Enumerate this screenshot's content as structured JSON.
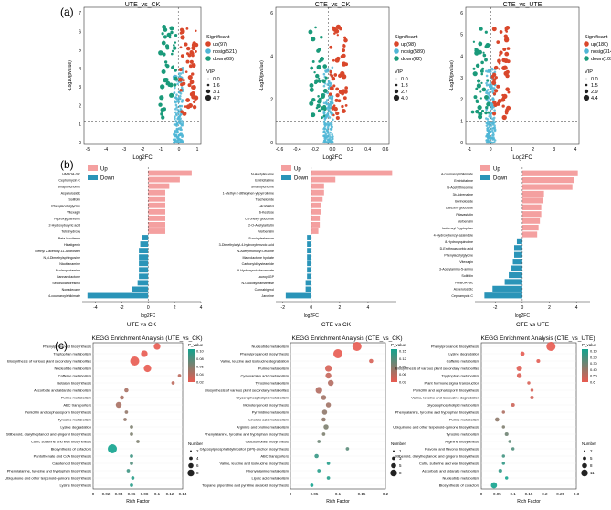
{
  "colors": {
    "up": "#d9472b",
    "nosig": "#4fb6d6",
    "down": "#1a9a7a",
    "bar_up": "#f4a0a0",
    "bar_down": "#2a94b8",
    "kegg_lo": "#e85a50",
    "kegg_hi": "#12a38e"
  },
  "panel_labels": {
    "a": "(a)",
    "b": "(b)",
    "c": "(c)"
  },
  "volcano": [
    {
      "title": "UTE_vs_CK",
      "xlabel": "Log2FC",
      "ylabel": "-Log10(pvalue)",
      "xticks": [
        "-5",
        "-4",
        "-3",
        "-2",
        "-1",
        "0",
        "1"
      ],
      "yticks": [
        "0",
        "1",
        "2",
        "3",
        "4",
        "5",
        "6",
        "7"
      ],
      "legend_title": "Significant",
      "legend_items": [
        "up(97)",
        "nosig(521)",
        "down(69)"
      ],
      "vip_title": "VIP",
      "vip_items": [
        "0.0",
        "1.6",
        "3.1",
        "4.7"
      ]
    },
    {
      "title": "CTE_vs_CK",
      "xlabel": "Log2FC",
      "ylabel": "-Log10(pvalue)",
      "xticks": [
        "-0.6",
        "-0.4",
        "-0.2",
        "0.0",
        "0.2",
        "0.4",
        "0.6"
      ],
      "yticks": [
        "0",
        "2",
        "4",
        "6"
      ],
      "legend_title": "Significant",
      "legend_items": [
        "up(98)",
        "nosig(589)",
        "down(82)"
      ],
      "vip_title": "VIP",
      "vip_items": [
        "0.0",
        "1.3",
        "2.7",
        "4.0"
      ]
    },
    {
      "title": "CTE_vs_UTE",
      "xlabel": "Log2FC",
      "ylabel": "-Log10(pvalue)",
      "xticks": [
        "-1",
        "0",
        "1",
        "2",
        "3",
        "4"
      ],
      "yticks": [
        "0",
        "1",
        "2",
        "3",
        "4",
        "5",
        "6"
      ],
      "legend_title": "Significant",
      "legend_items": [
        "up(180)",
        "nosig(314)",
        "down(103)"
      ],
      "vip_title": "VIP",
      "vip_items": [
        "0.0",
        "1.5",
        "2.9",
        "4.4"
      ]
    }
  ],
  "bars": [
    {
      "xlabel": "log2FC",
      "footer": "UTE vs CK",
      "legend_up": "Up",
      "legend_down": "Down",
      "xticks": [
        "-4",
        "-2",
        "0",
        "2",
        "4"
      ],
      "labels": [
        "HMBOA-Glc",
        "Cephamycin C",
        "Sinapoylcholine",
        "Asperulosidic",
        "Solifolin",
        "Phenylacetylglycine",
        "Vitexagin",
        "Hydroxyguanidine",
        "2-Hydroxybutyric acid",
        "Tetrahydroxy",
        "Beta-Isocitrene",
        "Hiuatigenin",
        "Methyl 2-acetoxy-11-Androsten",
        "N,N-Dimethylsphingosine",
        "Nicotianamine",
        "Nucleoprotamine",
        "Cannanolactone",
        "Secoisolariciresinol",
        "Nonadecane",
        "4-coumaroylshikimate"
      ],
      "values": [
        3.3,
        2.4,
        1.6,
        1.3,
        1.3,
        1.3,
        1.3,
        1.3,
        1.3,
        1.3,
        -0.5,
        -0.6,
        -0.7,
        -0.7,
        -0.7,
        -0.7,
        -0.7,
        -0.8,
        -1.2,
        -4.6
      ]
    },
    {
      "xlabel": "log2FC",
      "footer": "CTE vs CK",
      "legend_up": "Up",
      "legend_down": "Down",
      "xticks": [
        "-2",
        "0",
        "2",
        "4"
      ],
      "labels": [
        "N-Acetylleucine",
        "Emtricitabine",
        "Sinapoylcholine",
        "1-Methyl-2-dithiophen-yl-pyrrolidine",
        "Tracheloside",
        "L-Arabinitol",
        "6-Kestose",
        "Citronellyl glucoside",
        "2-O-Acetylarbutin",
        "Verbenalin",
        "Succinylselenium",
        "3-Dimethylallyl-4-hydroxybenzoic acid",
        "N-Acetylmonoxyl Leucine",
        "Macrolactone hydrate",
        "Carbonyldicysteamide",
        "9-Hydroxyoctadecanoate",
        "Lauroyl-GP",
        "N-Glucosyltransferase",
        "Cannabigerol",
        "Jarosine"
      ],
      "values": [
        5.7,
        1.7,
        0.9,
        0.9,
        0.8,
        0.7,
        0.7,
        0.6,
        0.6,
        0.5,
        -0.3,
        -0.3,
        -0.3,
        -0.3,
        -0.3,
        -0.3,
        -0.3,
        -0.4,
        -0.4,
        -1.8
      ]
    },
    {
      "xlabel": "log2FC",
      "footer": "CTE vs UTE",
      "legend_up": "Up",
      "legend_down": "Down",
      "xticks": [
        "-2",
        "0",
        "2",
        "4"
      ],
      "labels": [
        "4-coumaroylshikimate",
        "Emtricitabine",
        "N-Acetylthreonine",
        "3b-Adrenaline",
        "Borinoloside",
        "Daidzein glucoside",
        "Pitavastatin",
        "Verbenalin",
        "Isobenzyl Tryptophan",
        "4-Hydroxybenzyl-azaindole",
        "8-Hydroxyquinoline",
        "D-Erythroascorbic acid",
        "Phenylacetylglycine",
        "Vitexagin",
        "3-Acetylamino-5-amino",
        "Solifolin",
        "HMBOA-Glc",
        "Asperulosidic",
        "Cephamycin C"
      ],
      "values": [
        4.1,
        3.8,
        3.7,
        1.6,
        1.5,
        1.4,
        1.4,
        1.3,
        1.2,
        1.1,
        -0.4,
        -0.6,
        -0.6,
        -0.7,
        -0.8,
        -1.0,
        -1.3,
        -2.2,
        -2.8
      ]
    }
  ],
  "kegg": [
    {
      "title": "KEGG Enrichment Analysis (UTE_vs_CK)",
      "xlabel": "Rich Factor",
      "xticks": [
        "0",
        "0.02",
        "0.04",
        "0.06",
        "0.08",
        "0.1",
        "0.12",
        "0.14"
      ],
      "xmax": 0.14,
      "pathways": [
        "Phenylpropanoid biosynthesis",
        "Tryptophan metabolism",
        "Biosynthesis of various plant secondary metabolites",
        "Nucleotide metabolism",
        "Caffeine metabolism",
        "Betalain biosynthesis",
        "Ascorbate and aldarate metabolism",
        "Purine metabolism",
        "ABC transporters",
        "Penicillin and cephalosporin biosynthesis",
        "Tyrosine metabolism",
        "Lysine degradation",
        "Stilbenoid, diarylheptanoid and gingerol biosynthesis",
        "Cutin, suberine and wax biosynthesis",
        "Biosynthesis of cofactors",
        "Pantothenate and CoA biosynthesis",
        "Carotenoid biosynthesis",
        "Phenylalanine, tyrosine and tryptophan biosynthesis",
        "Ubiquinone and other terpenoid-quinone biosynthesis",
        "Lysine biosynthesis"
      ],
      "rich": [
        0.1,
        0.08,
        0.065,
        0.085,
        0.135,
        0.125,
        0.052,
        0.045,
        0.04,
        0.052,
        0.05,
        0.06,
        0.06,
        0.07,
        0.03,
        0.06,
        0.06,
        0.055,
        0.062,
        0.06
      ],
      "pval": [
        0.01,
        0.01,
        0.01,
        0.01,
        0.03,
        0.03,
        0.04,
        0.04,
        0.04,
        0.05,
        0.05,
        0.06,
        0.06,
        0.06,
        0.11,
        0.09,
        0.08,
        0.09,
        0.1,
        0.1
      ],
      "count": [
        5,
        5,
        8,
        6,
        1,
        1,
        2,
        2,
        4,
        1,
        1,
        1,
        1,
        1,
        8,
        1,
        1,
        1,
        1,
        1
      ],
      "pvalue_title": "P_value",
      "pvalue_ticks": [
        "0.10",
        "0.08",
        "0.06",
        "0.04",
        "0.02"
      ],
      "number_title": "Number",
      "number_items": [
        "2",
        "4",
        "6",
        "8"
      ]
    },
    {
      "title": "KEGG Enrichment Analysis (CTE_vs_CK)",
      "xlabel": "Rich Factor",
      "xticks": [
        "0",
        "0.05",
        "0.1",
        "0.15",
        "0.2"
      ],
      "xmax": 0.2,
      "pathways": [
        "Nucleotide metabolism",
        "Phenylpropanoid biosynthesis",
        "Valine, leucine and isoleucine degradation",
        "Purine metabolism",
        "Cyanoamino acid metabolism",
        "Tyrosine metabolism",
        "Biosynthesis of various plant secondary metabolites",
        "Glycerophospholipid metabolism",
        "Monoterpenoid biosynthesis",
        "Pyrimidine metabolism",
        "Linoleic acid metabolism",
        "Arginine and proline metabolism",
        "Phenylalanine, tyrosine and tryptophan biosynthesis",
        "Glucosinolate biosynthesis",
        "Glycosylphosphatidylinositol (GPI)-anchor biosynthesis",
        "ABC transporters",
        "Valine, leucine and isoleucine biosynthesis",
        "Phenylalanine metabolism",
        "Lipoic acid metabolism",
        "Tropane, piperidine and pyridine alkaloid biosynthesis"
      ],
      "rich": [
        0.14,
        0.1,
        0.17,
        0.08,
        0.08,
        0.085,
        0.06,
        0.07,
        0.08,
        0.072,
        0.07,
        0.075,
        0.07,
        0.06,
        0.12,
        0.055,
        0.08,
        0.06,
        0.08,
        0.045
      ],
      "pval": [
        0.02,
        0.02,
        0.03,
        0.03,
        0.04,
        0.05,
        0.05,
        0.06,
        0.06,
        0.07,
        0.07,
        0.08,
        0.08,
        0.09,
        0.1,
        0.12,
        0.13,
        0.13,
        0.13,
        0.14
      ],
      "count": [
        8,
        8,
        2,
        5,
        4,
        4,
        5,
        3,
        3,
        3,
        2,
        3,
        1,
        1,
        1,
        2,
        1,
        1,
        1,
        1
      ],
      "pvalue_title": "P_value",
      "pvalue_ticks": [
        "0.15",
        "0.12",
        "0.09",
        "0.06",
        "0.03"
      ],
      "number_title": "Number",
      "number_items": [
        "1",
        "3",
        "5",
        "8"
      ]
    },
    {
      "title": "KEGG Enrichment Analysis (CTE_vs_UTE)",
      "xlabel": "Rich Factor",
      "xticks": [
        "0",
        "0.05",
        "0.1",
        "0.15",
        "0.2",
        "0.25",
        "0.3"
      ],
      "xmax": 0.3,
      "pathways": [
        "Phenylpropanoid biosynthesis",
        "Lysine degradation",
        "Caffeine metabolism",
        "Biosynthesis of various plant secondary metabolites",
        "Tryptophan metabolism",
        "Plant hormone signal transduction",
        "Penicillin and cephalosporin biosynthesis",
        "Valine, leucine and isoleucine degradation",
        "Glycerophospholipid metabolism",
        "Phenylalanine, tyrosine and tryptophan biosynthesis",
        "Purine metabolism",
        "Ubiquinone and other terpenoid-quinone biosynthesis",
        "Tyrosine metabolism",
        "Arginine biosynthesis",
        "Flavone and flavonol biosynthesis",
        "Stilbenoid, diarylheptanoid and gingerol biosynthesis",
        "Cutin, suberine and wax biosynthesis",
        "Ascorbate and aldarate metabolism",
        "Nucleotide metabolism",
        "Biosynthesis of cofactors"
      ],
      "rich": [
        0.22,
        0.13,
        0.18,
        0.12,
        0.12,
        0.15,
        0.16,
        0.16,
        0.1,
        0.07,
        0.05,
        0.07,
        0.08,
        0.09,
        0.1,
        0.07,
        0.07,
        0.06,
        0.08,
        0.04
      ],
      "pval": [
        0.01,
        0.02,
        0.03,
        0.04,
        0.05,
        0.06,
        0.07,
        0.08,
        0.1,
        0.2,
        0.3,
        0.35,
        0.4,
        0.45,
        0.5,
        0.55,
        0.6,
        0.6,
        0.7,
        0.7
      ],
      "count": [
        11,
        3,
        2,
        5,
        4,
        1,
        1,
        2,
        2,
        1,
        3,
        1,
        2,
        1,
        1,
        1,
        1,
        2,
        1,
        6
      ],
      "pvalue_title": "P_value",
      "pvalue_ticks": [
        "0.10",
        "0.20",
        "0.30",
        "0.40",
        "0.50",
        "0.6"
      ],
      "number_title": "Number",
      "number_items": [
        "2",
        "5",
        "8",
        "11"
      ]
    }
  ]
}
